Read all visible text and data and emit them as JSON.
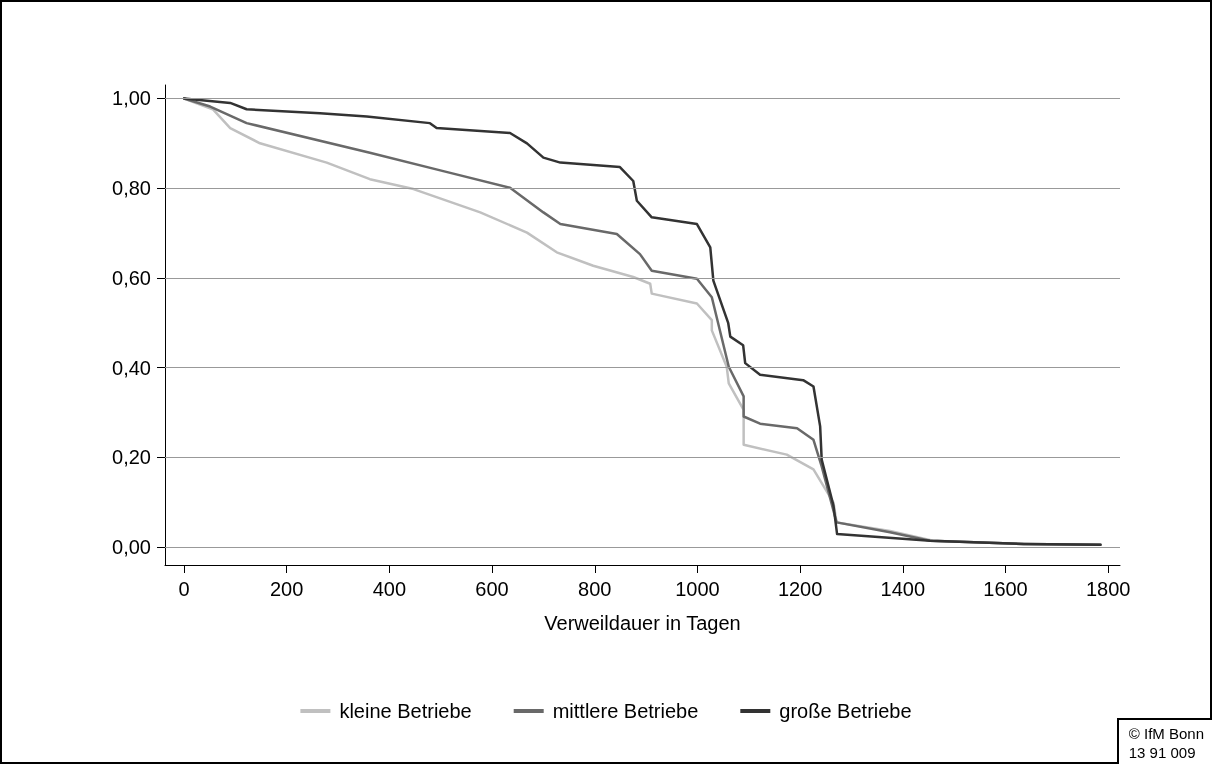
{
  "chart_data": {
    "type": "line",
    "xlabel": "Verweildauer in Tagen",
    "annotations": [
      "© IfM Bonn\n13 91 009"
    ],
    "xlim": [
      -37,
      1823
    ],
    "xticks": [
      0,
      200,
      400,
      600,
      800,
      1000,
      1200,
      1400,
      1600,
      1800
    ],
    "ylim": [
      -0.04,
      1.03
    ],
    "yticks": [
      {
        "value": 0,
        "label": "0,00"
      },
      {
        "value": 0.2,
        "label": "0,20"
      },
      {
        "value": 0.4,
        "label": "0,40"
      },
      {
        "value": 0.6,
        "label": "0,60"
      },
      {
        "value": 0.8,
        "label": "0,80"
      },
      {
        "value": 1,
        "label": "1,00"
      }
    ],
    "grid": "y",
    "legend": "bottom",
    "marker": "none",
    "line_style": "solid",
    "series": [
      {
        "name": "kleine Betriebe",
        "color": "#c0c0c0",
        "x": [
          0,
          56,
          90,
          148,
          278,
          362,
          447,
          577,
          668,
          726,
          797,
          875,
          908,
          911,
          999,
          1028,
          1028,
          1057,
          1061,
          1090,
          1090,
          1174,
          1226,
          1265,
          1271,
          1375,
          1459,
          1635,
          1785
        ],
        "values": [
          1,
          0.976,
          0.934,
          0.9,
          0.857,
          0.82,
          0.798,
          0.746,
          0.701,
          0.657,
          0.627,
          0.602,
          0.587,
          0.565,
          0.543,
          0.506,
          0.483,
          0.402,
          0.365,
          0.306,
          0.228,
          0.206,
          0.173,
          0.099,
          0.055,
          0.036,
          0.014,
          0.007,
          0.005
        ]
      },
      {
        "name": "mittlere Betriebe",
        "color": "#696969",
        "x": [
          0,
          51,
          122,
          362,
          505,
          635,
          700,
          733,
          843,
          888,
          911,
          999,
          1028,
          1061,
          1090,
          1090,
          1122,
          1194,
          1226,
          1242,
          1271,
          1375,
          1453,
          1635,
          1785
        ],
        "values": [
          1,
          0.982,
          0.945,
          0.879,
          0.838,
          0.801,
          0.746,
          0.72,
          0.698,
          0.653,
          0.616,
          0.598,
          0.557,
          0.402,
          0.336,
          0.291,
          0.275,
          0.265,
          0.239,
          0.18,
          0.055,
          0.033,
          0.014,
          0.007,
          0.005
        ]
      },
      {
        "name": "große Betriebe",
        "color": "#333333",
        "x": [
          0,
          90,
          122,
          265,
          356,
          479,
          492,
          635,
          668,
          700,
          733,
          849,
          875,
          882,
          911,
          999,
          1025,
          1031,
          1060,
          1064,
          1089,
          1093,
          1122,
          1206,
          1226,
          1239,
          1242,
          1265,
          1272,
          1453,
          1635,
          1785
        ],
        "values": [
          1,
          0.99,
          0.976,
          0.967,
          0.96,
          0.945,
          0.934,
          0.923,
          0.9,
          0.868,
          0.857,
          0.847,
          0.816,
          0.772,
          0.735,
          0.72,
          0.668,
          0.594,
          0.499,
          0.469,
          0.45,
          0.41,
          0.384,
          0.372,
          0.358,
          0.269,
          0.195,
          0.092,
          0.029,
          0.014,
          0.007,
          0.005
        ]
      }
    ]
  }
}
